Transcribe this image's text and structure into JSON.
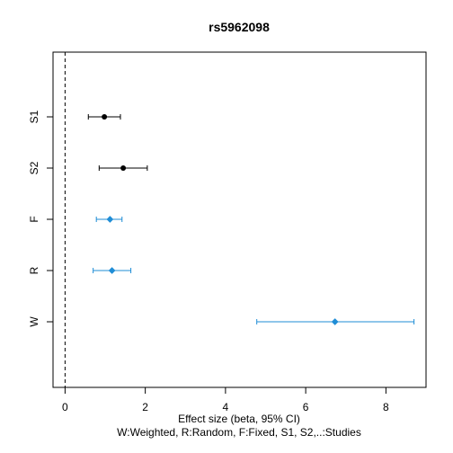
{
  "chart_data": {
    "type": "forest",
    "title": "rs5962098",
    "xlabel": "Effect size (beta, 95% CI)",
    "subtitle": "W:Weighted, R:Random, F:Fixed, S1, S2,..:Studies",
    "xlim": [
      -0.3,
      9.0
    ],
    "x_ticks": [
      0,
      2,
      4,
      6,
      8
    ],
    "reference_line": 0,
    "rows": [
      {
        "label": "S1",
        "estimate": 0.98,
        "lower": 0.58,
        "upper": 1.38,
        "kind": "study"
      },
      {
        "label": "S2",
        "estimate": 1.45,
        "lower": 0.85,
        "upper": 2.05,
        "kind": "study"
      },
      {
        "label": "F",
        "estimate": 1.12,
        "lower": 0.78,
        "upper": 1.42,
        "kind": "summary"
      },
      {
        "label": "R",
        "estimate": 1.17,
        "lower": 0.7,
        "upper": 1.64,
        "kind": "summary"
      },
      {
        "label": "W",
        "estimate": 6.73,
        "lower": 4.78,
        "upper": 8.7,
        "kind": "summary"
      }
    ],
    "colors": {
      "study": "#000000",
      "summary": "#1f8dd6"
    },
    "grid": false
  }
}
